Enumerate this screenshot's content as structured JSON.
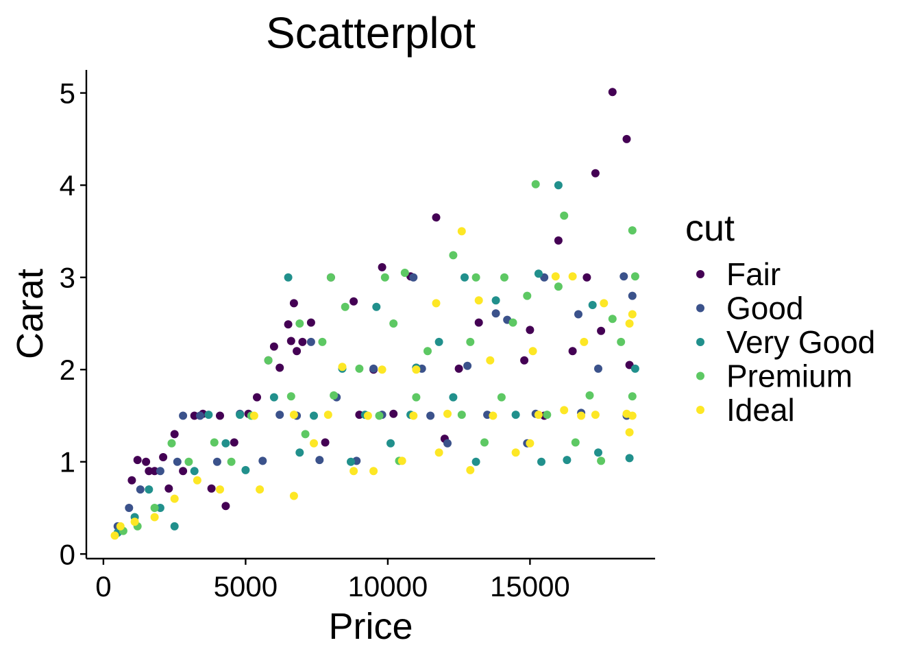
{
  "chart_data": {
    "type": "scatter",
    "title": "Scatterplot",
    "xlabel": "Price",
    "ylabel": "Carat",
    "xlim": [
      -600,
      19400
    ],
    "ylim": [
      -0.05,
      5.25
    ],
    "xticks": [
      {
        "value": 0,
        "label": "0"
      },
      {
        "value": 5000,
        "label": "5000"
      },
      {
        "value": 10000,
        "label": "10000"
      },
      {
        "value": 15000,
        "label": "15000"
      }
    ],
    "yticks": [
      {
        "value": 0,
        "label": "0"
      },
      {
        "value": 1,
        "label": "1"
      },
      {
        "value": 2,
        "label": "2"
      },
      {
        "value": 3,
        "label": "3"
      },
      {
        "value": 4,
        "label": "4"
      },
      {
        "value": 5,
        "label": "5"
      }
    ],
    "grid": false,
    "legend": {
      "title": "cut",
      "placement": "right"
    },
    "series": [
      {
        "name": "Fair",
        "color": "#440154",
        "points": [
          [
            17900,
            5.01
          ],
          [
            18400,
            4.5
          ],
          [
            17300,
            4.13
          ],
          [
            16000,
            3.4
          ],
          [
            11700,
            3.65
          ],
          [
            9800,
            3.11
          ],
          [
            8000,
            3.0
          ],
          [
            10800,
            3.01
          ],
          [
            17000,
            3.0
          ],
          [
            6700,
            2.72
          ],
          [
            8800,
            2.74
          ],
          [
            6500,
            2.49
          ],
          [
            7300,
            2.51
          ],
          [
            6000,
            2.25
          ],
          [
            6600,
            2.31
          ],
          [
            7000,
            2.3
          ],
          [
            5800,
            2.1
          ],
          [
            6200,
            2.02
          ],
          [
            6800,
            2.2
          ],
          [
            13200,
            2.51
          ],
          [
            15000,
            2.43
          ],
          [
            17500,
            2.42
          ],
          [
            1200,
            1.02
          ],
          [
            1500,
            1.0
          ],
          [
            1800,
            0.9
          ],
          [
            2100,
            1.05
          ],
          [
            2500,
            1.3
          ],
          [
            3200,
            1.5
          ],
          [
            4100,
            1.5
          ],
          [
            4600,
            1.21
          ],
          [
            5100,
            1.52
          ],
          [
            3800,
            0.71
          ],
          [
            4300,
            0.52
          ],
          [
            2800,
            0.9
          ],
          [
            1000,
            0.8
          ],
          [
            9500,
            2.0
          ],
          [
            11000,
            2.02
          ],
          [
            12500,
            2.01
          ],
          [
            14800,
            2.1
          ],
          [
            16500,
            2.2
          ],
          [
            18500,
            2.05
          ],
          [
            5400,
            1.7
          ],
          [
            7800,
            1.21
          ],
          [
            9000,
            1.51
          ],
          [
            10200,
            1.52
          ],
          [
            12000,
            1.25
          ],
          [
            15500,
            1.5
          ],
          [
            3500,
            1.52
          ],
          [
            2300,
            0.71
          ],
          [
            1600,
            0.9
          ]
        ]
      },
      {
        "name": "Good",
        "color": "#3b528b",
        "points": [
          [
            18300,
            3.01
          ],
          [
            15500,
            3.0
          ],
          [
            10900,
            3.0
          ],
          [
            18600,
            2.8
          ],
          [
            14200,
            2.54
          ],
          [
            13800,
            2.61
          ],
          [
            16700,
            2.6
          ],
          [
            9500,
            2.01
          ],
          [
            11200,
            2.01
          ],
          [
            12800,
            2.04
          ],
          [
            17400,
            2.01
          ],
          [
            7300,
            2.3
          ],
          [
            2800,
            1.5
          ],
          [
            3400,
            1.5
          ],
          [
            4800,
            1.52
          ],
          [
            6200,
            1.51
          ],
          [
            8200,
            1.7
          ],
          [
            9800,
            1.51
          ],
          [
            11500,
            1.5
          ],
          [
            13500,
            1.51
          ],
          [
            15200,
            1.52
          ],
          [
            16800,
            1.53
          ],
          [
            18400,
            1.5
          ],
          [
            1300,
            0.7
          ],
          [
            2000,
            0.9
          ],
          [
            2600,
            1.0
          ],
          [
            4000,
            1.0
          ],
          [
            5600,
            1.01
          ],
          [
            7600,
            1.02
          ],
          [
            8900,
            1.01
          ],
          [
            12100,
            1.2
          ],
          [
            14900,
            1.2
          ],
          [
            500,
            0.3
          ],
          [
            900,
            0.5
          ],
          [
            6800,
            1.5
          ]
        ]
      },
      {
        "name": "Very Good",
        "color": "#21908c",
        "points": [
          [
            16000,
            4.0
          ],
          [
            13800,
            2.75
          ],
          [
            15300,
            3.04
          ],
          [
            12700,
            3.0
          ],
          [
            6500,
            3.0
          ],
          [
            9600,
            2.68
          ],
          [
            17200,
            2.7
          ],
          [
            18700,
            2.01
          ],
          [
            11000,
            2.02
          ],
          [
            8400,
            2.01
          ],
          [
            4800,
            1.51
          ],
          [
            3700,
            1.51
          ],
          [
            6000,
            1.7
          ],
          [
            7400,
            1.5
          ],
          [
            9200,
            1.51
          ],
          [
            10800,
            1.51
          ],
          [
            12300,
            1.7
          ],
          [
            14500,
            1.51
          ],
          [
            16300,
            1.02
          ],
          [
            17400,
            1.1
          ],
          [
            18500,
            1.04
          ],
          [
            15400,
            1.0
          ],
          [
            2000,
            0.5
          ],
          [
            2500,
            0.3
          ],
          [
            1100,
            0.4
          ],
          [
            3200,
            0.9
          ],
          [
            5000,
            0.91
          ],
          [
            8700,
            1.0
          ],
          [
            10100,
            1.2
          ],
          [
            13100,
            1.0
          ],
          [
            500,
            0.23
          ],
          [
            1600,
            0.7
          ],
          [
            4300,
            1.2
          ],
          [
            6900,
            1.1
          ],
          [
            11800,
            2.3
          ]
        ]
      },
      {
        "name": "Premium",
        "color": "#5dc863",
        "points": [
          [
            15200,
            4.01
          ],
          [
            16200,
            3.67
          ],
          [
            18600,
            3.51
          ],
          [
            12300,
            3.24
          ],
          [
            8000,
            3.0
          ],
          [
            9900,
            3.0
          ],
          [
            10600,
            3.05
          ],
          [
            13100,
            3.0
          ],
          [
            14100,
            3.0
          ],
          [
            18700,
            3.01
          ],
          [
            14900,
            2.8
          ],
          [
            16000,
            2.9
          ],
          [
            8500,
            2.68
          ],
          [
            10200,
            2.5
          ],
          [
            5800,
            2.1
          ],
          [
            6900,
            2.5
          ],
          [
            7700,
            2.3
          ],
          [
            9000,
            2.01
          ],
          [
            11400,
            2.2
          ],
          [
            12900,
            2.3
          ],
          [
            14400,
            2.51
          ],
          [
            17900,
            2.55
          ],
          [
            2400,
            1.2
          ],
          [
            3000,
            1.0
          ],
          [
            3900,
            1.21
          ],
          [
            5200,
            1.5
          ],
          [
            6600,
            1.71
          ],
          [
            8100,
            1.72
          ],
          [
            9700,
            1.5
          ],
          [
            11000,
            1.7
          ],
          [
            12600,
            1.51
          ],
          [
            14000,
            1.7
          ],
          [
            15600,
            1.51
          ],
          [
            17100,
            1.72
          ],
          [
            18600,
            1.71
          ],
          [
            16600,
            1.21
          ],
          [
            17500,
            1.01
          ],
          [
            1200,
            0.3
          ],
          [
            1800,
            0.5
          ],
          [
            700,
            0.25
          ],
          [
            4500,
            1.0
          ],
          [
            7100,
            1.3
          ],
          [
            10400,
            1.01
          ],
          [
            13400,
            1.21
          ],
          [
            18200,
            2.3
          ]
        ]
      },
      {
        "name": "Ideal",
        "color": "#fde725",
        "points": [
          [
            12600,
            3.5
          ],
          [
            15900,
            3.01
          ],
          [
            16500,
            3.01
          ],
          [
            11700,
            2.72
          ],
          [
            13200,
            2.75
          ],
          [
            17600,
            2.72
          ],
          [
            18600,
            2.6
          ],
          [
            8400,
            2.03
          ],
          [
            9800,
            2.0
          ],
          [
            11000,
            2.0
          ],
          [
            13600,
            2.1
          ],
          [
            15100,
            2.2
          ],
          [
            16900,
            2.3
          ],
          [
            18500,
            2.5
          ],
          [
            5300,
            1.5
          ],
          [
            6700,
            1.51
          ],
          [
            7900,
            1.51
          ],
          [
            9300,
            1.5
          ],
          [
            10900,
            1.5
          ],
          [
            12100,
            1.52
          ],
          [
            13700,
            1.5
          ],
          [
            15300,
            1.51
          ],
          [
            16800,
            1.5
          ],
          [
            18400,
            1.52
          ],
          [
            14500,
            1.1
          ],
          [
            15000,
            1.2
          ],
          [
            11800,
            1.1
          ],
          [
            10500,
            1.01
          ],
          [
            8800,
            0.9
          ],
          [
            6700,
            0.63
          ],
          [
            5500,
            0.7
          ],
          [
            4100,
            0.7
          ],
          [
            3300,
            0.8
          ],
          [
            2500,
            0.6
          ],
          [
            1800,
            0.4
          ],
          [
            1100,
            0.35
          ],
          [
            600,
            0.3
          ],
          [
            400,
            0.2
          ],
          [
            18500,
            1.32
          ],
          [
            17300,
            1.51
          ],
          [
            9500,
            0.9
          ],
          [
            7400,
            1.2
          ],
          [
            12900,
            0.91
          ],
          [
            16200,
            1.56
          ],
          [
            18600,
            1.5
          ]
        ]
      }
    ]
  }
}
